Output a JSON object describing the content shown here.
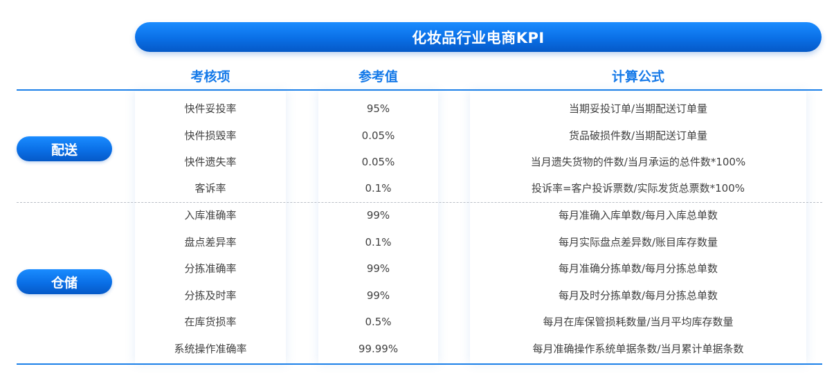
{
  "title": "化妆品行业电商KPI",
  "columns": [
    "考核项",
    "参考值",
    "计算公式"
  ],
  "categories": [
    "配送",
    "仓储"
  ],
  "rows": [
    {
      "item": "快件妥投率",
      "value": "95%",
      "formula": "当期妥投订单/当期配送订单量"
    },
    {
      "item": "快件损毁率",
      "value": "0.05%",
      "formula": "货品破损件数/当期配送订单量"
    },
    {
      "item": "快件遗失率",
      "value": "0.05%",
      "formula": "当月遗失货物的件数/当月承运的总件数*100%"
    },
    {
      "item": "客诉率",
      "value": "0.1%",
      "formula": "投诉率=客户投诉票数/实际发货总票数*100%"
    },
    {
      "item": "入库准确率",
      "value": "99%",
      "formula": "每月准确入库单数/每月入库总单数"
    },
    {
      "item": "盘点差异率",
      "value": "0.1%",
      "formula": "每月实际盘点差异数/账目库存数量"
    },
    {
      "item": "分拣准确率",
      "value": "99%",
      "formula": "每月准确分拣单数/每月分拣总单数"
    },
    {
      "item": "分拣及时率",
      "value": "99%",
      "formula": "每月及时分拣单数/每月分拣总单数"
    },
    {
      "item": "在库货损率",
      "value": "0.5%",
      "formula": "每月在库保管损耗数量/当月平均库存数量"
    },
    {
      "item": "系统操作准确率",
      "value": "99.99%",
      "formula": "每月准确操作系统单据条数/当月累计单据条数"
    }
  ]
}
